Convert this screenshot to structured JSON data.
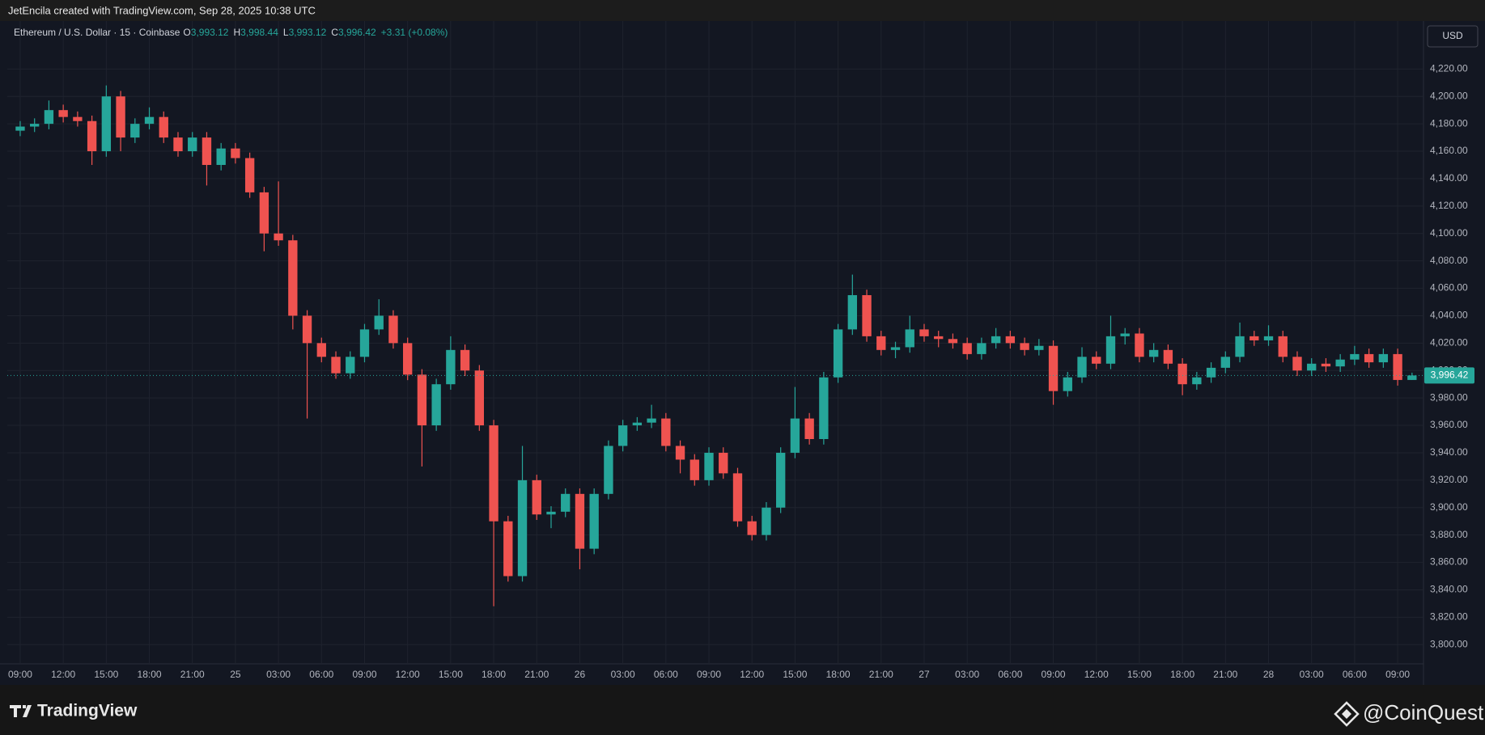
{
  "header": {
    "attribution": "JetEncila created with TradingView.com, Sep 28, 2025 10:38 UTC"
  },
  "chart_data": {
    "type": "candlestick",
    "title": "Ethereum / U.S. Dollar · 15 · Coinbase",
    "ohlc_legend": [
      {
        "label": "O",
        "value": "3,993.12"
      },
      {
        "label": "H",
        "value": "3,998.44"
      },
      {
        "label": "L",
        "value": "3,993.12"
      },
      {
        "label": "C",
        "value": "3,996.42"
      }
    ],
    "change": "+3.31 (+0.08%)",
    "currency": "USD",
    "up_color": "#26a69a",
    "down_color": "#ef5350",
    "grid": true,
    "open": [
      4175,
      4178,
      4180,
      4190,
      4185,
      4182,
      4160,
      4200,
      4170,
      4180,
      4185,
      4170,
      4160,
      4170,
      4150,
      4162,
      4155,
      4130,
      4100,
      4095,
      4040,
      4020,
      4010,
      3998,
      4010,
      4030,
      4040,
      4020,
      3997,
      3960,
      3990,
      4015,
      4000,
      3960,
      3890,
      3850,
      3920,
      3895,
      3897,
      3910,
      3870,
      3910,
      3945,
      3960,
      3962,
      3965,
      3945,
      3935,
      3920,
      3940,
      3925,
      3890,
      3880,
      3900,
      3940,
      3965,
      3950,
      3995,
      4030,
      4055,
      4025,
      4015,
      4017,
      4030,
      4025,
      4023,
      4020,
      4012,
      4020,
      4025,
      4020,
      4015,
      4018,
      3985,
      3995,
      4010,
      4005,
      4025,
      4027,
      4010,
      4015,
      4005,
      3990,
      3995,
      4002,
      4010,
      4025,
      4022,
      4025,
      4010,
      4000,
      4005,
      4003,
      4008,
      4012,
      4006,
      4012,
      3993.12
    ],
    "high": [
      4182,
      4184,
      4197,
      4194,
      4189,
      4186,
      4208,
      4204,
      4184,
      4192,
      4189,
      4174,
      4174,
      4174,
      4166,
      4166,
      4159,
      4134,
      4138,
      4099,
      4044,
      4024,
      4014,
      4014,
      4034,
      4052,
      4044,
      4024,
      4001,
      3994,
      4025,
      4019,
      4004,
      3964,
      3894,
      3945,
      3924,
      3901,
      3914,
      3914,
      3914,
      3949,
      3964,
      3966,
      3975,
      3969,
      3949,
      3939,
      3944,
      3944,
      3929,
      3894,
      3904,
      3944,
      3988,
      3969,
      3999,
      4034,
      4070,
      4059,
      4029,
      4021,
      4040,
      4034,
      4029,
      4027,
      4024,
      4024,
      4031,
      4029,
      4024,
      4023,
      4022,
      3999,
      4017,
      4014,
      4040,
      4031,
      4031,
      4020,
      4019,
      4009,
      3999,
      4006,
      4014,
      4035,
      4029,
      4033,
      4029,
      4014,
      4009,
      4009,
      4012,
      4018,
      4016,
      4016,
      4016,
      3998.44
    ],
    "low": [
      4171,
      4174,
      4176,
      4181,
      4178,
      4150,
      4156,
      4160,
      4166,
      4176,
      4166,
      4156,
      4156,
      4135,
      4146,
      4151,
      4126,
      4087,
      4091,
      4030,
      3965,
      4006,
      3994,
      3994,
      4006,
      4026,
      4016,
      3993,
      3930,
      3956,
      3986,
      3996,
      3956,
      3828,
      3846,
      3846,
      3891,
      3885,
      3893,
      3855,
      3866,
      3906,
      3941,
      3956,
      3958,
      3941,
      3925,
      3916,
      3916,
      3921,
      3886,
      3876,
      3876,
      3896,
      3936,
      3946,
      3946,
      3991,
      4026,
      4021,
      4011,
      4009,
      4013,
      4021,
      4017,
      4016,
      4008,
      4008,
      4016,
      4016,
      4011,
      4011,
      3975,
      3981,
      3991,
      4001,
      4001,
      4019,
      4006,
      4006,
      4001,
      3982,
      3986,
      3991,
      3998,
      4006,
      4018,
      4018,
      4006,
      3996,
      3996,
      3999,
      3999,
      4004,
      4002,
      4002,
      3989,
      3993.12
    ],
    "close": [
      4178,
      4180,
      4190,
      4185,
      4182,
      4160,
      4200,
      4170,
      4180,
      4185,
      4170,
      4160,
      4170,
      4150,
      4162,
      4155,
      4130,
      4100,
      4095,
      4040,
      4020,
      4010,
      3998,
      4010,
      4030,
      4040,
      4020,
      3997,
      3960,
      3990,
      4015,
      4000,
      3960,
      3890,
      3850,
      3920,
      3895,
      3897,
      3910,
      3870,
      3910,
      3945,
      3960,
      3962,
      3965,
      3945,
      3935,
      3920,
      3940,
      3925,
      3890,
      3880,
      3900,
      3940,
      3965,
      3950,
      3995,
      4030,
      4055,
      4025,
      4015,
      4017,
      4030,
      4025,
      4023,
      4020,
      4012,
      4020,
      4025,
      4020,
      4015,
      4018,
      3985,
      3995,
      4010,
      4005,
      4025,
      4027,
      4010,
      4015,
      4005,
      3990,
      3995,
      4002,
      4010,
      4025,
      4022,
      4025,
      4010,
      4000,
      4005,
      4003,
      4008,
      4012,
      4006,
      4012,
      3993.12,
      3996.42
    ],
    "last_price": {
      "value": 3996.42,
      "label": "3,996.42"
    },
    "xlim": [
      -0.9,
      97.8
    ],
    "xticks": [
      {
        "value": 0,
        "label": "09:00"
      },
      {
        "value": 3,
        "label": "12:00"
      },
      {
        "value": 6,
        "label": "15:00"
      },
      {
        "value": 9,
        "label": "18:00"
      },
      {
        "value": 12,
        "label": "21:00"
      },
      {
        "value": 15,
        "label": "25"
      },
      {
        "value": 18,
        "label": "03:00"
      },
      {
        "value": 21,
        "label": "06:00"
      },
      {
        "value": 24,
        "label": "09:00"
      },
      {
        "value": 27,
        "label": "12:00"
      },
      {
        "value": 30,
        "label": "15:00"
      },
      {
        "value": 33,
        "label": "18:00"
      },
      {
        "value": 36,
        "label": "21:00"
      },
      {
        "value": 39,
        "label": "26"
      },
      {
        "value": 42,
        "label": "03:00"
      },
      {
        "value": 45,
        "label": "06:00"
      },
      {
        "value": 48,
        "label": "09:00"
      },
      {
        "value": 51,
        "label": "12:00"
      },
      {
        "value": 54,
        "label": "15:00"
      },
      {
        "value": 57,
        "label": "18:00"
      },
      {
        "value": 60,
        "label": "21:00"
      },
      {
        "value": 63,
        "label": "27"
      },
      {
        "value": 66,
        "label": "03:00"
      },
      {
        "value": 69,
        "label": "06:00"
      },
      {
        "value": 72,
        "label": "09:00"
      },
      {
        "value": 75,
        "label": "12:00"
      },
      {
        "value": 78,
        "label": "15:00"
      },
      {
        "value": 81,
        "label": "18:00"
      },
      {
        "value": 84,
        "label": "21:00"
      },
      {
        "value": 87,
        "label": "28"
      },
      {
        "value": 90,
        "label": "03:00"
      },
      {
        "value": 93,
        "label": "06:00"
      },
      {
        "value": 96,
        "label": "09:00"
      }
    ],
    "ylim": [
      3786,
      4255
    ],
    "yticks": [
      {
        "value": 3800,
        "label": "3,800.00"
      },
      {
        "value": 3820,
        "label": "3,820.00"
      },
      {
        "value": 3840,
        "label": "3,840.00"
      },
      {
        "value": 3860,
        "label": "3,860.00"
      },
      {
        "value": 3880,
        "label": "3,880.00"
      },
      {
        "value": 3900,
        "label": "3,900.00"
      },
      {
        "value": 3920,
        "label": "3,920.00"
      },
      {
        "value": 3940,
        "label": "3,940.00"
      },
      {
        "value": 3960,
        "label": "3,960.00"
      },
      {
        "value": 3980,
        "label": "3,980.00"
      },
      {
        "value": 4000,
        "label": "4,000.00"
      },
      {
        "value": 4020,
        "label": "4,020.00"
      },
      {
        "value": 4040,
        "label": "4,040.00"
      },
      {
        "value": 4060,
        "label": "4,060.00"
      },
      {
        "value": 4080,
        "label": "4,080.00"
      },
      {
        "value": 4100,
        "label": "4,100.00"
      },
      {
        "value": 4120,
        "label": "4,120.00"
      },
      {
        "value": 4140,
        "label": "4,140.00"
      },
      {
        "value": 4160,
        "label": "4,160.00"
      },
      {
        "value": 4180,
        "label": "4,180.00"
      },
      {
        "value": 4200,
        "label": "4,200.00"
      },
      {
        "value": 4220,
        "label": "4,220.00"
      }
    ]
  },
  "footer": {
    "brand": "TradingView",
    "watermark": "@CoinQuest"
  }
}
